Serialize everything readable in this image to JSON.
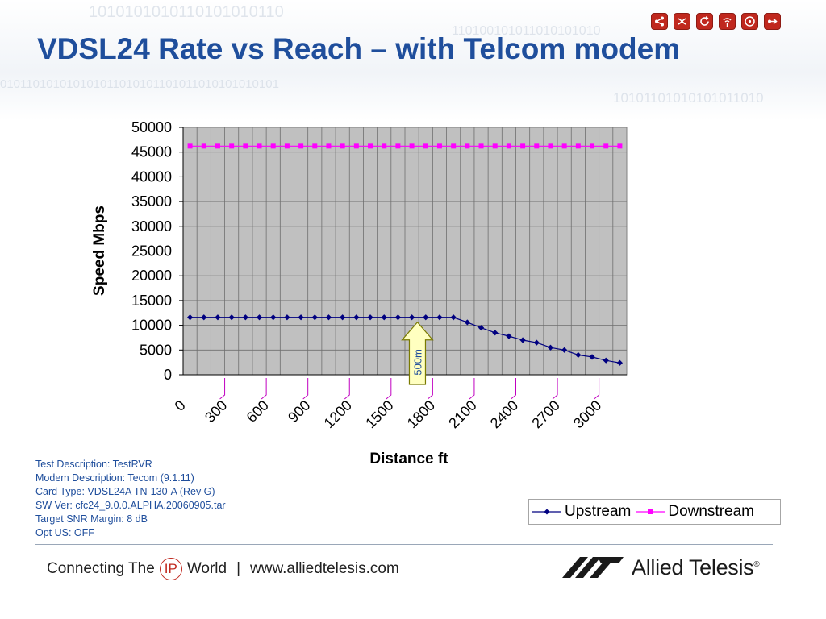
{
  "slide": {
    "title": "VDSL24 Rate vs Reach – with Telcom modem",
    "test_info": [
      "Test Description: TestRVR",
      "Modem Description: Tecom (9.1.11)",
      "Card Type: VDSL24A TN-130-A (Rev G)",
      "SW Ver: cfc24_9.0.0.ALPHA.20060905.tar",
      "Target SNR Margin: 8 dB",
      "Opt US: OFF"
    ],
    "nav_icons": [
      "network-icon",
      "shuffle-icon",
      "refresh-icon",
      "wireless-icon",
      "disc-icon",
      "forward-icon"
    ],
    "accent_color": "#c0281e",
    "title_color": "#1f4e9c"
  },
  "footer": {
    "connecting": "Connecting The",
    "ip": "IP",
    "world": "World",
    "separator": "|",
    "url": "www.alliedtelesis.com",
    "brand": "Allied Telesis",
    "reg": "®"
  },
  "chart_data": {
    "type": "line",
    "xlabel": "Distance ft",
    "ylabel": "Speed Mbps",
    "ylim": [
      0,
      50000
    ],
    "yticks": [
      0,
      5000,
      10000,
      15000,
      20000,
      25000,
      30000,
      35000,
      40000,
      45000,
      50000
    ],
    "xtick_labels": [
      "0",
      "300",
      "600",
      "900",
      "1200",
      "1500",
      "1800",
      "2100",
      "2400",
      "2700",
      "3000"
    ],
    "x": [
      0,
      100,
      200,
      300,
      400,
      500,
      600,
      700,
      800,
      900,
      1000,
      1100,
      1200,
      1300,
      1400,
      1500,
      1600,
      1700,
      1800,
      1900,
      2000,
      2100,
      2200,
      2300,
      2400,
      2500,
      2600,
      2700,
      2800,
      2900,
      3000,
      3100
    ],
    "grid": true,
    "plot_background": "#c0c0c0",
    "legend_position": "bottom-right",
    "series": [
      {
        "name": "Upstream",
        "color": "#000080",
        "marker": "diamond",
        "values": [
          11600,
          11600,
          11600,
          11600,
          11600,
          11600,
          11600,
          11600,
          11600,
          11600,
          11600,
          11600,
          11600,
          11600,
          11600,
          11600,
          11600,
          11600,
          11600,
          11600,
          10600,
          9500,
          8500,
          7800,
          7000,
          6500,
          5500,
          5000,
          4000,
          3600,
          2900,
          2400
        ]
      },
      {
        "name": "Downstream",
        "color": "#ff00ff",
        "marker": "square",
        "values": [
          46200,
          46200,
          46200,
          46200,
          46200,
          46200,
          46200,
          46200,
          46200,
          46200,
          46200,
          46200,
          46200,
          46200,
          46200,
          46200,
          46200,
          46200,
          46200,
          46200,
          46200,
          46200,
          46200,
          46200,
          46200,
          46200,
          46200,
          46200,
          46200,
          46200,
          46200,
          46200
        ]
      }
    ],
    "annotation": {
      "text": "500m",
      "x": 1640,
      "fill": "#ffffc0",
      "border": "#7a7a00",
      "text_color": "#1f4e9c"
    }
  }
}
